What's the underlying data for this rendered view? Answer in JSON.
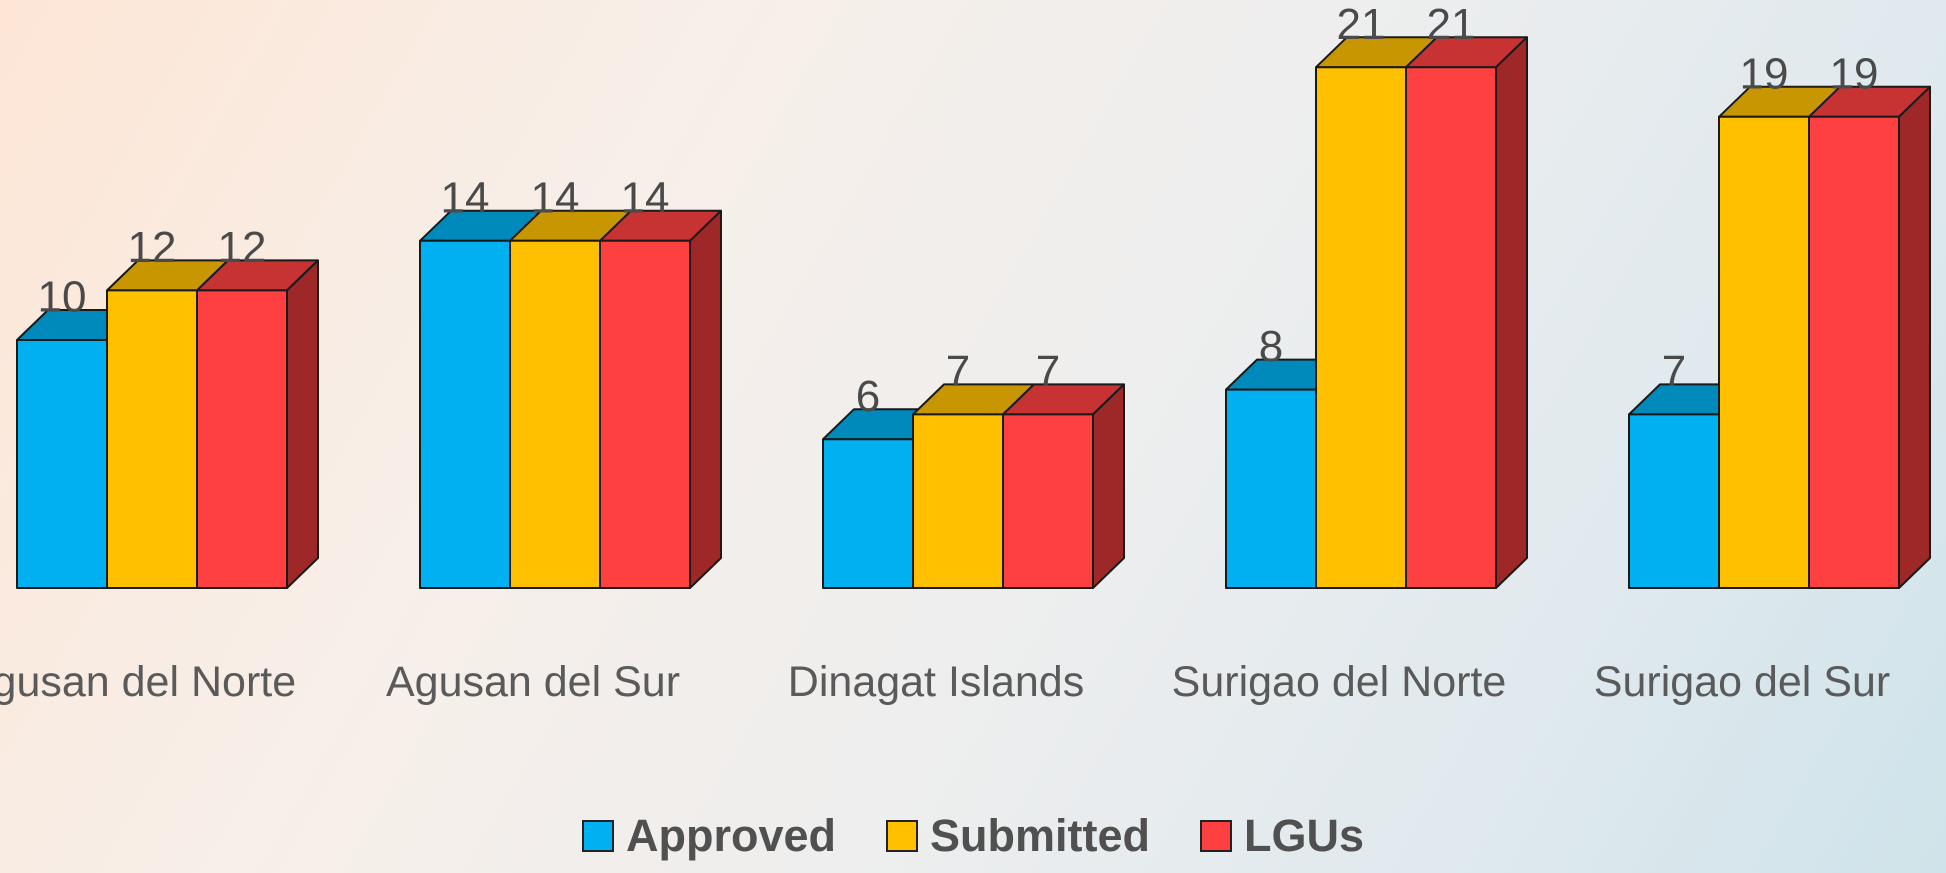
{
  "chart_data": {
    "type": "bar3d",
    "categories": [
      "Agusan del Norte",
      "Agusan del Sur",
      "Dinagat Islands",
      "Surigao del Norte",
      "Surigao del Sur"
    ],
    "series": [
      {
        "name": "Approved",
        "color": "#00b0f0",
        "values": [
          10,
          14,
          6,
          8,
          7
        ]
      },
      {
        "name": "Submitted",
        "color": "#ffc000",
        "values": [
          12,
          14,
          7,
          21,
          19
        ]
      },
      {
        "name": "LGUs",
        "color": "#ff4040",
        "values": [
          12,
          14,
          7,
          21,
          19
        ]
      }
    ]
  }
}
